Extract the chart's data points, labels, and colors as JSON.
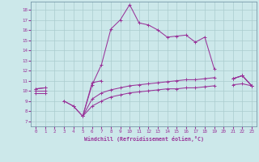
{
  "xlabel": "Windchill (Refroidissement éolien,°C)",
  "bg_color": "#cce8ea",
  "grid_color": "#aaccce",
  "line_color": "#993399",
  "spine_color": "#7799aa",
  "xlim": [
    -0.5,
    23.5
  ],
  "ylim": [
    6.5,
    18.8
  ],
  "xticks": [
    0,
    1,
    2,
    3,
    4,
    5,
    6,
    7,
    8,
    9,
    10,
    11,
    12,
    13,
    14,
    15,
    16,
    17,
    18,
    19,
    20,
    21,
    22,
    23
  ],
  "yticks": [
    7,
    8,
    9,
    10,
    11,
    12,
    13,
    14,
    15,
    16,
    17,
    18
  ],
  "line2_x": [
    0,
    1,
    3,
    4,
    5,
    6,
    7,
    8,
    9,
    10,
    11,
    12,
    13,
    14,
    15,
    16,
    17,
    18,
    19,
    21,
    22,
    23
  ],
  "line2_y": [
    10.2,
    10.3,
    9.0,
    8.5,
    7.5,
    10.6,
    12.6,
    16.1,
    17.0,
    18.5,
    16.7,
    16.5,
    16.0,
    15.3,
    15.4,
    15.5,
    14.8,
    15.3,
    12.2,
    11.2,
    11.5,
    10.5
  ],
  "line2_breaks": [
    [
      1,
      3
    ],
    [
      19,
      21
    ]
  ],
  "line1_x": [
    0,
    1,
    3,
    4,
    5,
    6,
    7,
    21,
    22,
    23
  ],
  "line1_y": [
    10.2,
    10.3,
    9.0,
    8.5,
    7.5,
    10.8,
    11.0,
    11.2,
    11.5,
    10.5
  ],
  "line1_breaks": [
    [
      1,
      3
    ],
    [
      7,
      21
    ]
  ],
  "line3_x": [
    0,
    1,
    5,
    6,
    7,
    8,
    9,
    10,
    11,
    12,
    13,
    14,
    15,
    16,
    17,
    18,
    19,
    21,
    22,
    23
  ],
  "line3_y": [
    10.0,
    10.0,
    7.5,
    9.2,
    9.8,
    10.1,
    10.3,
    10.5,
    10.6,
    10.7,
    10.8,
    10.9,
    11.0,
    11.1,
    11.1,
    11.2,
    11.3,
    11.2,
    11.5,
    10.5
  ],
  "line3_breaks": [
    [
      1,
      5
    ],
    [
      19,
      21
    ]
  ],
  "line4_x": [
    0,
    1,
    5,
    6,
    7,
    8,
    9,
    10,
    11,
    12,
    13,
    14,
    15,
    16,
    17,
    18,
    19,
    21,
    22,
    23
  ],
  "line4_y": [
    9.8,
    9.8,
    7.5,
    8.5,
    9.0,
    9.4,
    9.6,
    9.8,
    9.9,
    10.0,
    10.1,
    10.2,
    10.2,
    10.3,
    10.3,
    10.4,
    10.5,
    10.6,
    10.7,
    10.5
  ],
  "line4_breaks": [
    [
      1,
      5
    ],
    [
      19,
      21
    ]
  ]
}
